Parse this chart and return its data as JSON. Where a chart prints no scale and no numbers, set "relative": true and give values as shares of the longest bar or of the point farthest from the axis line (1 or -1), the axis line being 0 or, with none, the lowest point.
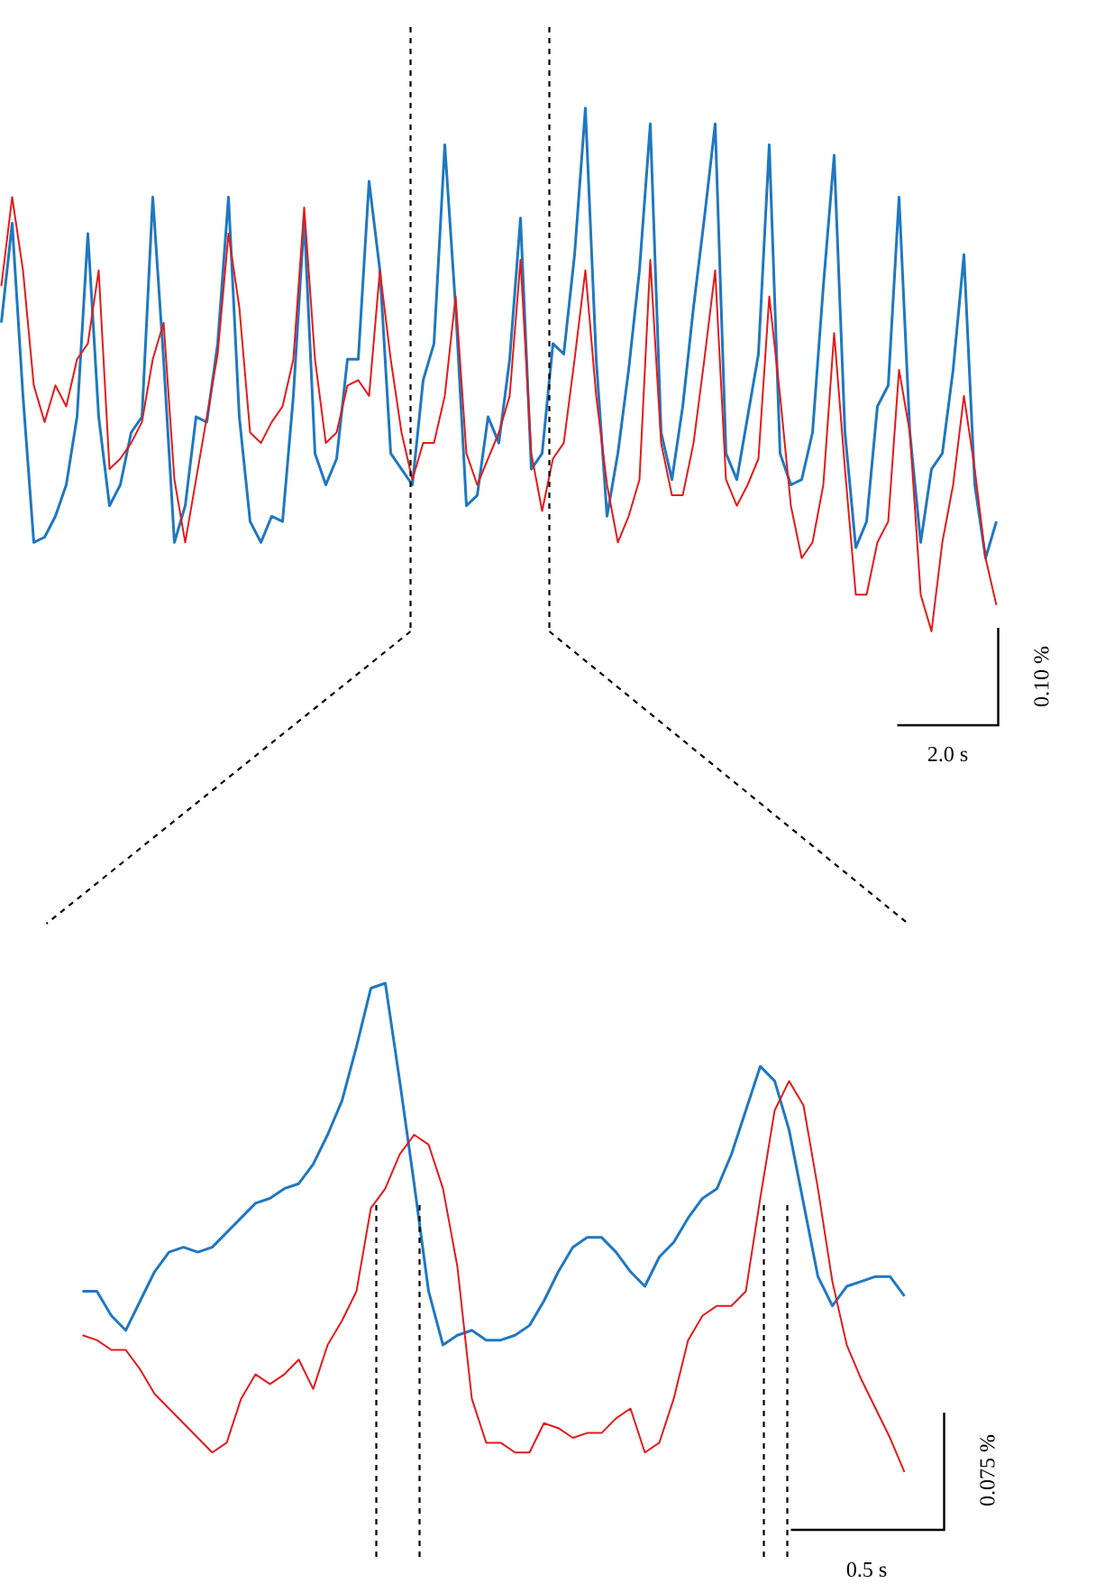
{
  "chart_data": [
    {
      "type": "line",
      "relative": true,
      "categories": [
        null,
        null,
        null,
        null,
        null,
        null,
        null,
        null,
        null,
        null,
        null,
        null,
        null,
        null,
        null,
        null,
        null,
        null,
        null,
        null,
        null,
        null,
        null,
        null,
        null,
        null,
        null,
        null,
        null,
        null,
        null,
        null,
        null,
        null,
        null,
        null,
        null,
        null,
        null,
        null,
        null,
        null,
        null,
        null,
        null,
        null,
        null,
        null,
        null,
        null,
        null,
        null,
        null,
        null,
        null,
        null,
        null,
        null,
        null,
        null,
        null,
        null,
        null,
        null,
        null,
        null,
        null,
        null,
        null,
        null,
        null,
        null,
        null,
        null,
        null,
        null,
        null,
        null,
        null,
        null,
        null,
        null,
        null,
        null,
        null,
        null,
        null,
        null,
        null,
        null,
        null,
        null,
        null
      ],
      "series": [
        {
          "color": "#1f78c1",
          "values": [
            0.59,
            0.78,
            0.45,
            0.17,
            0.18,
            0.22,
            0.28,
            0.41,
            0.76,
            0.41,
            0.24,
            0.28,
            0.38,
            0.41,
            0.83,
            0.52,
            0.17,
            0.24,
            0.41,
            0.4,
            0.55,
            0.83,
            0.41,
            0.21,
            0.17,
            0.22,
            0.21,
            0.45,
            0.79,
            0.34,
            0.28,
            0.33,
            0.52,
            0.52,
            0.86,
            0.69,
            0.34,
            0.31,
            0.28,
            0.48,
            0.55,
            0.93,
            0.62,
            0.24,
            0.26,
            0.41,
            0.36,
            0.52,
            0.79,
            0.31,
            0.34,
            0.55,
            0.53,
            0.72,
            1.0,
            0.52,
            0.22,
            0.34,
            0.5,
            0.69,
            0.97,
            0.38,
            0.29,
            0.43,
            0.62,
            0.79,
            0.97,
            0.34,
            0.29,
            0.41,
            0.53,
            0.93,
            0.34,
            0.28,
            0.29,
            0.38,
            0.66,
            0.91,
            0.38,
            0.16,
            0.21,
            0.43,
            0.47,
            0.83,
            0.38,
            0.17,
            0.31,
            0.34,
            0.5,
            0.72,
            0.28,
            0.14,
            0.21
          ]
        },
        {
          "color": "#e31a1c",
          "values": [
            0.66,
            0.83,
            0.69,
            0.47,
            0.4,
            0.47,
            0.43,
            0.52,
            0.55,
            0.69,
            0.31,
            0.33,
            0.36,
            0.4,
            0.52,
            0.59,
            0.29,
            0.17,
            0.29,
            0.41,
            0.53,
            0.76,
            0.62,
            0.38,
            0.36,
            0.4,
            0.43,
            0.52,
            0.81,
            0.52,
            0.36,
            0.38,
            0.47,
            0.48,
            0.45,
            0.69,
            0.52,
            0.38,
            0.29,
            0.36,
            0.36,
            0.45,
            0.64,
            0.34,
            0.28,
            0.33,
            0.38,
            0.45,
            0.71,
            0.34,
            0.23,
            0.33,
            0.36,
            0.52,
            0.69,
            0.45,
            0.28,
            0.17,
            0.22,
            0.29,
            0.71,
            0.36,
            0.26,
            0.26,
            0.36,
            0.52,
            0.69,
            0.29,
            0.24,
            0.28,
            0.33,
            0.64,
            0.45,
            0.24,
            0.14,
            0.17,
            0.28,
            0.57,
            0.31,
            0.07,
            0.07,
            0.17,
            0.21,
            0.5,
            0.38,
            0.07,
            0.0,
            0.17,
            0.28,
            0.45,
            0.31,
            0.14,
            0.05
          ]
        }
      ],
      "annotations": [
        "0.10 %",
        "2.0 s"
      ]
    },
    {
      "type": "line",
      "relative": true,
      "categories": [
        null,
        null,
        null,
        null,
        null,
        null,
        null,
        null,
        null,
        null,
        null,
        null,
        null,
        null,
        null,
        null,
        null,
        null,
        null,
        null,
        null,
        null,
        null,
        null,
        null,
        null,
        null,
        null,
        null,
        null,
        null,
        null,
        null,
        null,
        null,
        null,
        null,
        null,
        null,
        null,
        null,
        null,
        null,
        null,
        null,
        null,
        null,
        null,
        null,
        null,
        null,
        null,
        null,
        null,
        null,
        null,
        null,
        null
      ],
      "series": [
        {
          "color": "#1f78c1",
          "values": [
            0.37,
            0.37,
            0.32,
            0.29,
            0.35,
            0.41,
            0.45,
            0.46,
            0.45,
            0.46,
            0.49,
            0.52,
            0.55,
            0.56,
            0.58,
            0.59,
            0.63,
            0.69,
            0.76,
            0.87,
            0.99,
            1.0,
            0.8,
            0.59,
            0.37,
            0.26,
            0.28,
            0.29,
            0.27,
            0.27,
            0.28,
            0.3,
            0.35,
            0.41,
            0.46,
            0.48,
            0.48,
            0.45,
            0.41,
            0.38,
            0.44,
            0.47,
            0.52,
            0.56,
            0.58,
            0.65,
            0.74,
            0.83,
            0.8,
            0.7,
            0.55,
            0.4,
            0.34,
            0.38,
            0.39,
            0.4,
            0.4,
            0.36
          ]
        },
        {
          "color": "#e31a1c",
          "values": [
            0.28,
            0.27,
            0.25,
            0.25,
            0.21,
            0.16,
            0.13,
            0.1,
            0.07,
            0.04,
            0.06,
            0.15,
            0.2,
            0.18,
            0.2,
            0.23,
            0.17,
            0.26,
            0.31,
            0.37,
            0.54,
            0.58,
            0.65,
            0.69,
            0.67,
            0.58,
            0.42,
            0.15,
            0.06,
            0.06,
            0.04,
            0.04,
            0.1,
            0.09,
            0.07,
            0.08,
            0.08,
            0.11,
            0.13,
            0.04,
            0.06,
            0.15,
            0.27,
            0.32,
            0.34,
            0.34,
            0.37,
            0.56,
            0.74,
            0.8,
            0.75,
            0.58,
            0.39,
            0.26,
            0.19,
            0.13,
            0.07,
            0.0
          ]
        }
      ],
      "annotations": [
        "0.075 %",
        "0.5 s"
      ]
    }
  ]
}
